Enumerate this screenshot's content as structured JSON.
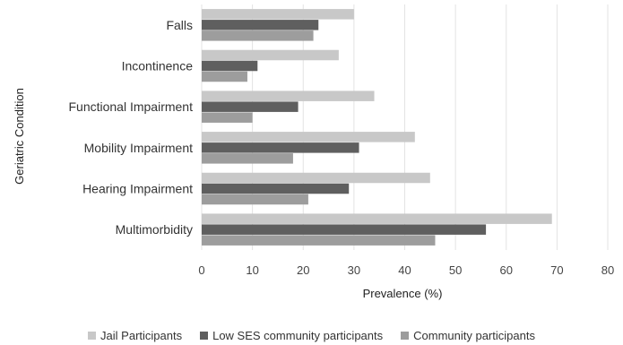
{
  "chart_data": {
    "type": "bar",
    "orientation": "horizontal",
    "categories": [
      "Falls",
      "Incontinence",
      "Functional Impairment",
      "Mobility Impairment",
      "Hearing Impairment",
      "Multimorbidity"
    ],
    "series": [
      {
        "name": "Jail Participants",
        "values": [
          30,
          27,
          34,
          42,
          45,
          69
        ],
        "color": "#c8c8c8"
      },
      {
        "name": "Low SES community participants",
        "values": [
          23,
          11,
          19,
          31,
          29,
          56
        ],
        "color": "#5f5f5f"
      },
      {
        "name": "Community participants",
        "values": [
          22,
          9,
          10,
          18,
          21,
          46
        ],
        "color": "#9d9d9d"
      }
    ],
    "xlabel": "Prevalence (%)",
    "ylabel": "Geriatric Condition",
    "xlim": [
      0,
      80
    ],
    "xticks": [
      "0",
      "10",
      "20",
      "30",
      "40",
      "50",
      "60",
      "70",
      "80"
    ],
    "grid": "vertical",
    "legend_position": "bottom"
  }
}
